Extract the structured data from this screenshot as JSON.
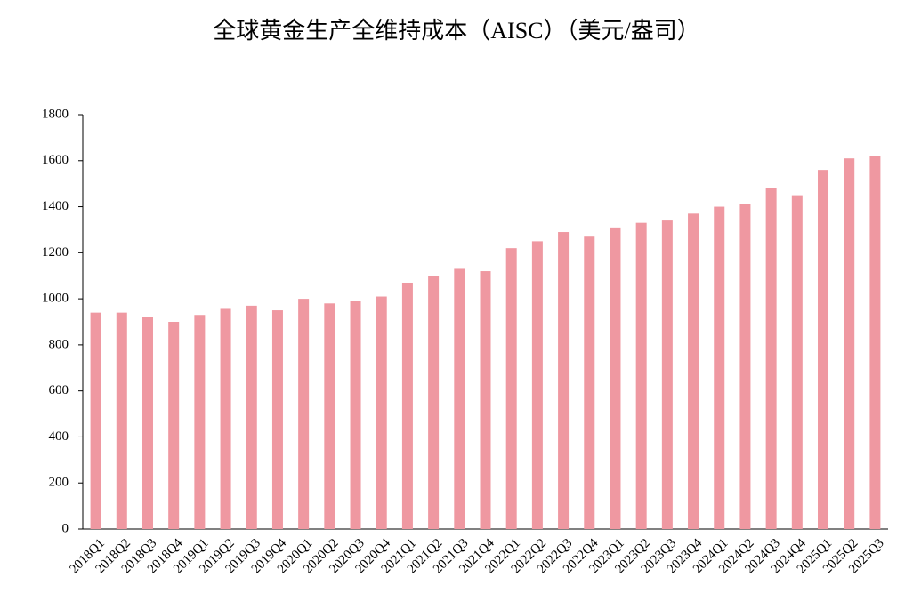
{
  "chart_data": {
    "type": "bar",
    "title": "全球黄金生产全维持成本（AISC）（美元/盎司）",
    "categories": [
      "2018Q1",
      "2018Q2",
      "2018Q3",
      "2018Q4",
      "2019Q1",
      "2019Q2",
      "2019Q3",
      "2019Q4",
      "2020Q1",
      "2020Q2",
      "2020Q3",
      "2020Q4",
      "2021Q1",
      "2021Q2",
      "2021Q3",
      "2021Q4",
      "2022Q1",
      "2022Q2",
      "2022Q3",
      "2022Q4",
      "2023Q1",
      "2023Q2",
      "2023Q3",
      "2023Q4",
      "2024Q1",
      "2024Q2",
      "2024Q3",
      "2024Q4",
      "2025Q1",
      "2025Q2",
      "2025Q3"
    ],
    "values": [
      940,
      940,
      920,
      900,
      930,
      960,
      970,
      950,
      1000,
      980,
      990,
      1010,
      1070,
      1100,
      1130,
      1120,
      1220,
      1250,
      1290,
      1270,
      1310,
      1330,
      1340,
      1370,
      1400,
      1410,
      1480,
      1450,
      1560,
      1610,
      1620
    ],
    "color": "#ef98a1",
    "ylim": [
      0,
      1800
    ],
    "yticks": [
      0,
      200,
      400,
      600,
      800,
      1000,
      1200,
      1400,
      1600,
      1800
    ],
    "grid": false
  }
}
